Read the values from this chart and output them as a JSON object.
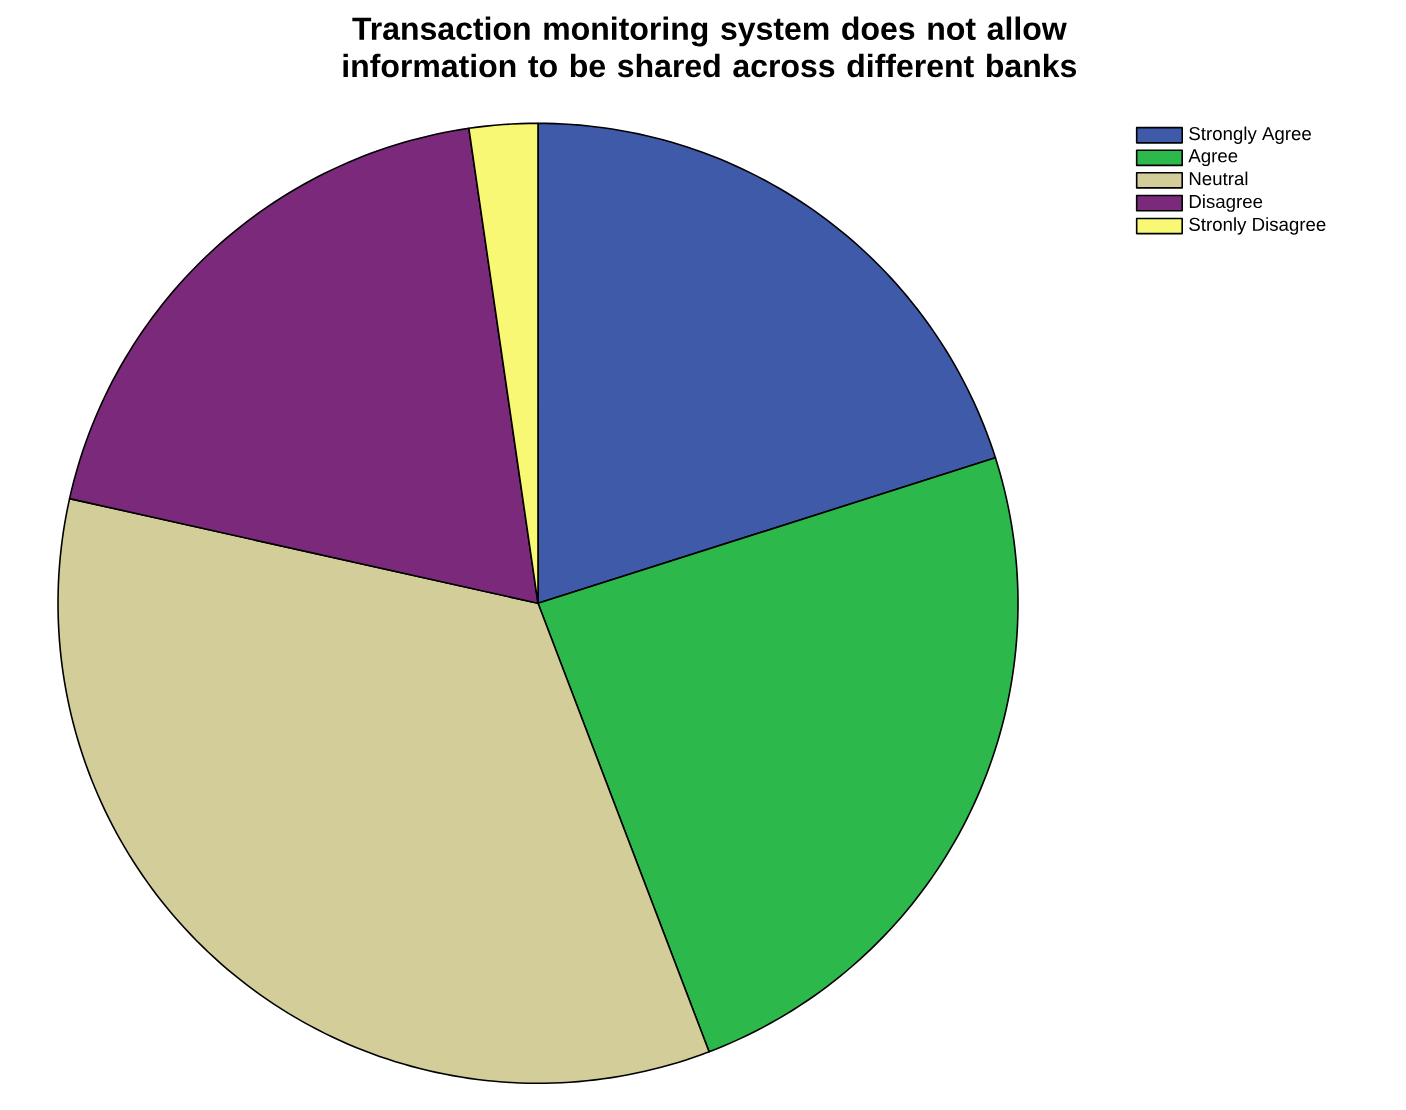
{
  "chart_data": {
    "type": "pie",
    "title": "Transaction monitoring system does not allow information to be shared across different banks",
    "categories": [
      "Strongly Agree",
      "Agree",
      "Neutral",
      "Disagree",
      "Stronly Disagree"
    ],
    "values": [
      20.1,
      24.1,
      34.3,
      19.2,
      2.3
    ],
    "colors": [
      "#3f5aa9",
      "#2db84b",
      "#d3ce99",
      "#7b2a7b",
      "#f8f874"
    ],
    "legend": "top right"
  }
}
